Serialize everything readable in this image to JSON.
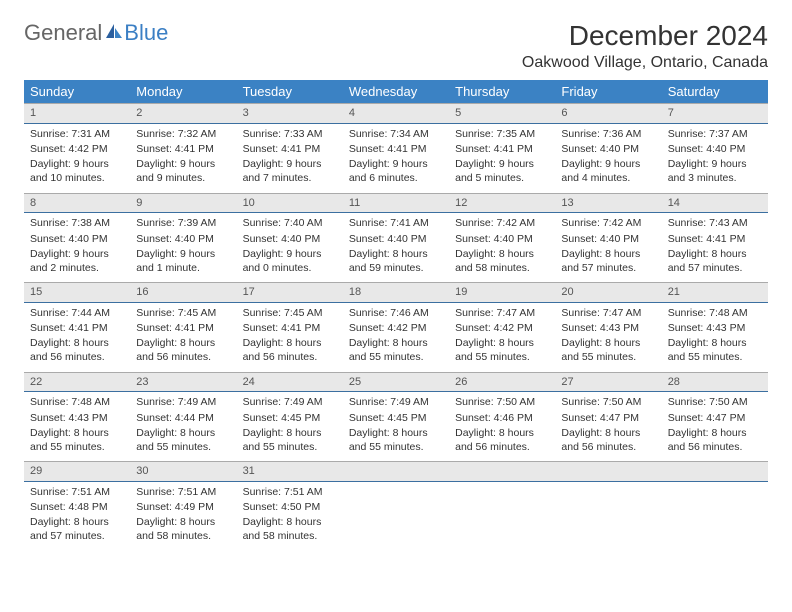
{
  "logo": {
    "general": "General",
    "blue": "Blue"
  },
  "title": "December 2024",
  "location": "Oakwood Village, Ontario, Canada",
  "colors": {
    "header_bg": "#3b82c4",
    "header_text": "#ffffff",
    "daynum_bg": "#e8e8e8",
    "daynum_border_bottom": "#3b6fa0",
    "body_text": "#333333"
  },
  "weekdays": [
    "Sunday",
    "Monday",
    "Tuesday",
    "Wednesday",
    "Thursday",
    "Friday",
    "Saturday"
  ],
  "weeks": [
    [
      {
        "n": "1",
        "sr": "7:31 AM",
        "ss": "4:42 PM",
        "dl": "9 hours and 10 minutes."
      },
      {
        "n": "2",
        "sr": "7:32 AM",
        "ss": "4:41 PM",
        "dl": "9 hours and 9 minutes."
      },
      {
        "n": "3",
        "sr": "7:33 AM",
        "ss": "4:41 PM",
        "dl": "9 hours and 7 minutes."
      },
      {
        "n": "4",
        "sr": "7:34 AM",
        "ss": "4:41 PM",
        "dl": "9 hours and 6 minutes."
      },
      {
        "n": "5",
        "sr": "7:35 AM",
        "ss": "4:41 PM",
        "dl": "9 hours and 5 minutes."
      },
      {
        "n": "6",
        "sr": "7:36 AM",
        "ss": "4:40 PM",
        "dl": "9 hours and 4 minutes."
      },
      {
        "n": "7",
        "sr": "7:37 AM",
        "ss": "4:40 PM",
        "dl": "9 hours and 3 minutes."
      }
    ],
    [
      {
        "n": "8",
        "sr": "7:38 AM",
        "ss": "4:40 PM",
        "dl": "9 hours and 2 minutes."
      },
      {
        "n": "9",
        "sr": "7:39 AM",
        "ss": "4:40 PM",
        "dl": "9 hours and 1 minute."
      },
      {
        "n": "10",
        "sr": "7:40 AM",
        "ss": "4:40 PM",
        "dl": "9 hours and 0 minutes."
      },
      {
        "n": "11",
        "sr": "7:41 AM",
        "ss": "4:40 PM",
        "dl": "8 hours and 59 minutes."
      },
      {
        "n": "12",
        "sr": "7:42 AM",
        "ss": "4:40 PM",
        "dl": "8 hours and 58 minutes."
      },
      {
        "n": "13",
        "sr": "7:42 AM",
        "ss": "4:40 PM",
        "dl": "8 hours and 57 minutes."
      },
      {
        "n": "14",
        "sr": "7:43 AM",
        "ss": "4:41 PM",
        "dl": "8 hours and 57 minutes."
      }
    ],
    [
      {
        "n": "15",
        "sr": "7:44 AM",
        "ss": "4:41 PM",
        "dl": "8 hours and 56 minutes."
      },
      {
        "n": "16",
        "sr": "7:45 AM",
        "ss": "4:41 PM",
        "dl": "8 hours and 56 minutes."
      },
      {
        "n": "17",
        "sr": "7:45 AM",
        "ss": "4:41 PM",
        "dl": "8 hours and 56 minutes."
      },
      {
        "n": "18",
        "sr": "7:46 AM",
        "ss": "4:42 PM",
        "dl": "8 hours and 55 minutes."
      },
      {
        "n": "19",
        "sr": "7:47 AM",
        "ss": "4:42 PM",
        "dl": "8 hours and 55 minutes."
      },
      {
        "n": "20",
        "sr": "7:47 AM",
        "ss": "4:43 PM",
        "dl": "8 hours and 55 minutes."
      },
      {
        "n": "21",
        "sr": "7:48 AM",
        "ss": "4:43 PM",
        "dl": "8 hours and 55 minutes."
      }
    ],
    [
      {
        "n": "22",
        "sr": "7:48 AM",
        "ss": "4:43 PM",
        "dl": "8 hours and 55 minutes."
      },
      {
        "n": "23",
        "sr": "7:49 AM",
        "ss": "4:44 PM",
        "dl": "8 hours and 55 minutes."
      },
      {
        "n": "24",
        "sr": "7:49 AM",
        "ss": "4:45 PM",
        "dl": "8 hours and 55 minutes."
      },
      {
        "n": "25",
        "sr": "7:49 AM",
        "ss": "4:45 PM",
        "dl": "8 hours and 55 minutes."
      },
      {
        "n": "26",
        "sr": "7:50 AM",
        "ss": "4:46 PM",
        "dl": "8 hours and 56 minutes."
      },
      {
        "n": "27",
        "sr": "7:50 AM",
        "ss": "4:47 PM",
        "dl": "8 hours and 56 minutes."
      },
      {
        "n": "28",
        "sr": "7:50 AM",
        "ss": "4:47 PM",
        "dl": "8 hours and 56 minutes."
      }
    ],
    [
      {
        "n": "29",
        "sr": "7:51 AM",
        "ss": "4:48 PM",
        "dl": "8 hours and 57 minutes."
      },
      {
        "n": "30",
        "sr": "7:51 AM",
        "ss": "4:49 PM",
        "dl": "8 hours and 58 minutes."
      },
      {
        "n": "31",
        "sr": "7:51 AM",
        "ss": "4:50 PM",
        "dl": "8 hours and 58 minutes."
      },
      {
        "empty": true
      },
      {
        "empty": true
      },
      {
        "empty": true
      },
      {
        "empty": true
      }
    ]
  ],
  "labels": {
    "sunrise": "Sunrise:",
    "sunset": "Sunset:",
    "daylight": "Daylight:"
  }
}
